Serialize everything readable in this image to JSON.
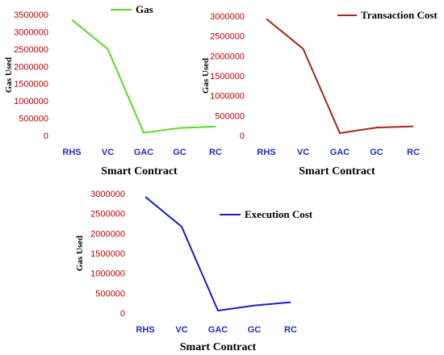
{
  "chart_data": [
    {
      "type": "line",
      "title": "",
      "xlabel": "Smart Contract",
      "ylabel": "Gas Used",
      "categories": [
        "RHS",
        "VC",
        "GAC",
        "GC",
        "RC"
      ],
      "ylim": [
        0,
        3500000
      ],
      "yticks": [
        0,
        500000,
        1000000,
        1500000,
        2000000,
        2500000,
        3000000,
        3500000
      ],
      "ytick_labels": [
        "0",
        "500000",
        "1000000",
        "1500000",
        "2000000",
        "2500000",
        "3000000",
        "3500000"
      ],
      "legend_position": "top-center",
      "series": [
        {
          "name": "Gas",
          "color": "#55dd22",
          "values": [
            3350000,
            2500000,
            80000,
            220000,
            260000
          ]
        }
      ]
    },
    {
      "type": "line",
      "title": "",
      "xlabel": "Smart Contract",
      "ylabel": "Gas Used",
      "categories": [
        "RHS",
        "VC",
        "GAC",
        "GC",
        "RC"
      ],
      "ylim": [
        0,
        3000000
      ],
      "yticks": [
        0,
        500000,
        1000000,
        1500000,
        2000000,
        2500000,
        3000000
      ],
      "ytick_labels": [
        "0",
        "500000",
        "1000000",
        "1500000",
        "2000000",
        "2500000",
        "3000000"
      ],
      "legend_position": "top-right",
      "series": [
        {
          "name": "Transaction Cost",
          "color": "#a52a1a",
          "values": [
            2930000,
            2180000,
            60000,
            200000,
            230000
          ]
        }
      ]
    },
    {
      "type": "line",
      "title": "",
      "xlabel": "Smart Contract",
      "ylabel": "Gas Used",
      "categories": [
        "RHS",
        "VC",
        "GAC",
        "GC",
        "RC"
      ],
      "ylim": [
        0,
        3000000
      ],
      "yticks": [
        0,
        500000,
        1000000,
        1500000,
        2000000,
        2500000,
        3000000
      ],
      "ytick_labels": [
        "0",
        "500000",
        "1000000",
        "1500000",
        "2000000",
        "2500000",
        "3000000"
      ],
      "legend_position": "top-right",
      "series": [
        {
          "name": "Execution Cost",
          "color": "#1a1acc",
          "values": [
            2920000,
            2170000,
            60000,
            190000,
            270000
          ]
        }
      ]
    }
  ]
}
